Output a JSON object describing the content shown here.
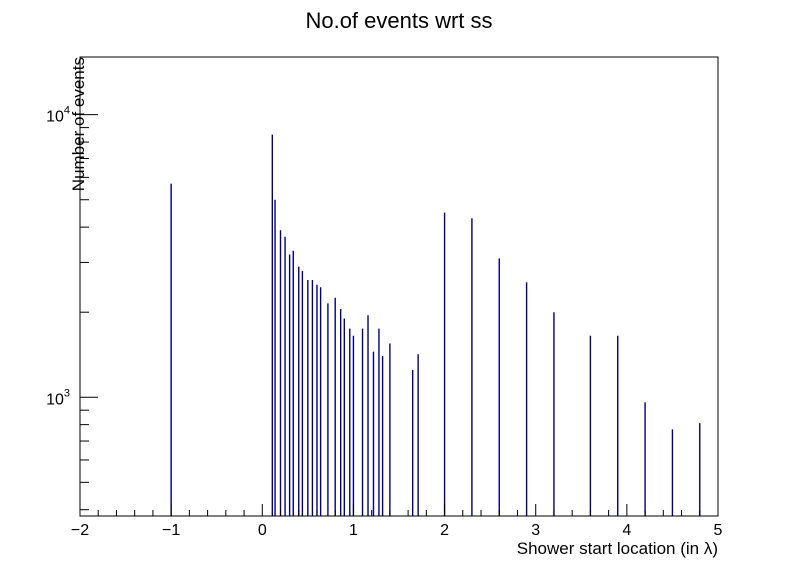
{
  "chart_data": {
    "type": "bar",
    "title": "No.of events wrt ss",
    "xlabel": "Shower start location (in λ)",
    "ylabel": "Number of events",
    "xlim": [
      -2,
      5
    ],
    "ylim": [
      380,
      16000
    ],
    "y_scale": "log",
    "grid": false,
    "legend": "none",
    "x_ticks": [
      "−2",
      "−1",
      "0",
      "1",
      "2",
      "3",
      "4",
      "5"
    ],
    "y_ticks": [
      {
        "base": "10",
        "exp": "3",
        "value": 1000
      },
      {
        "base": "10",
        "exp": "4",
        "value": 10000
      }
    ],
    "bar_color": "#000080",
    "series": [
      {
        "x": [
          -1.0,
          0.11,
          0.14,
          0.2,
          0.25,
          0.3,
          0.34,
          0.4,
          0.44,
          0.5,
          0.55,
          0.6,
          0.64,
          0.72,
          0.8,
          0.86,
          0.9,
          0.96,
          1.0,
          1.1,
          1.16,
          1.22,
          1.28,
          1.32,
          1.4,
          1.65,
          1.71,
          2.0,
          2.3,
          2.6,
          2.9,
          3.2,
          3.6,
          3.9,
          4.2,
          4.5,
          4.8
        ],
        "values": [
          5700,
          8500,
          5000,
          3900,
          3700,
          3200,
          3300,
          2900,
          2800,
          2600,
          2600,
          2500,
          2450,
          2150,
          2250,
          2050,
          1900,
          1750,
          1650,
          1750,
          1950,
          1450,
          1750,
          1400,
          1550,
          1250,
          1420,
          4500,
          4300,
          3100,
          2550,
          2000,
          1650,
          1650,
          960,
          770,
          810
        ]
      }
    ]
  }
}
